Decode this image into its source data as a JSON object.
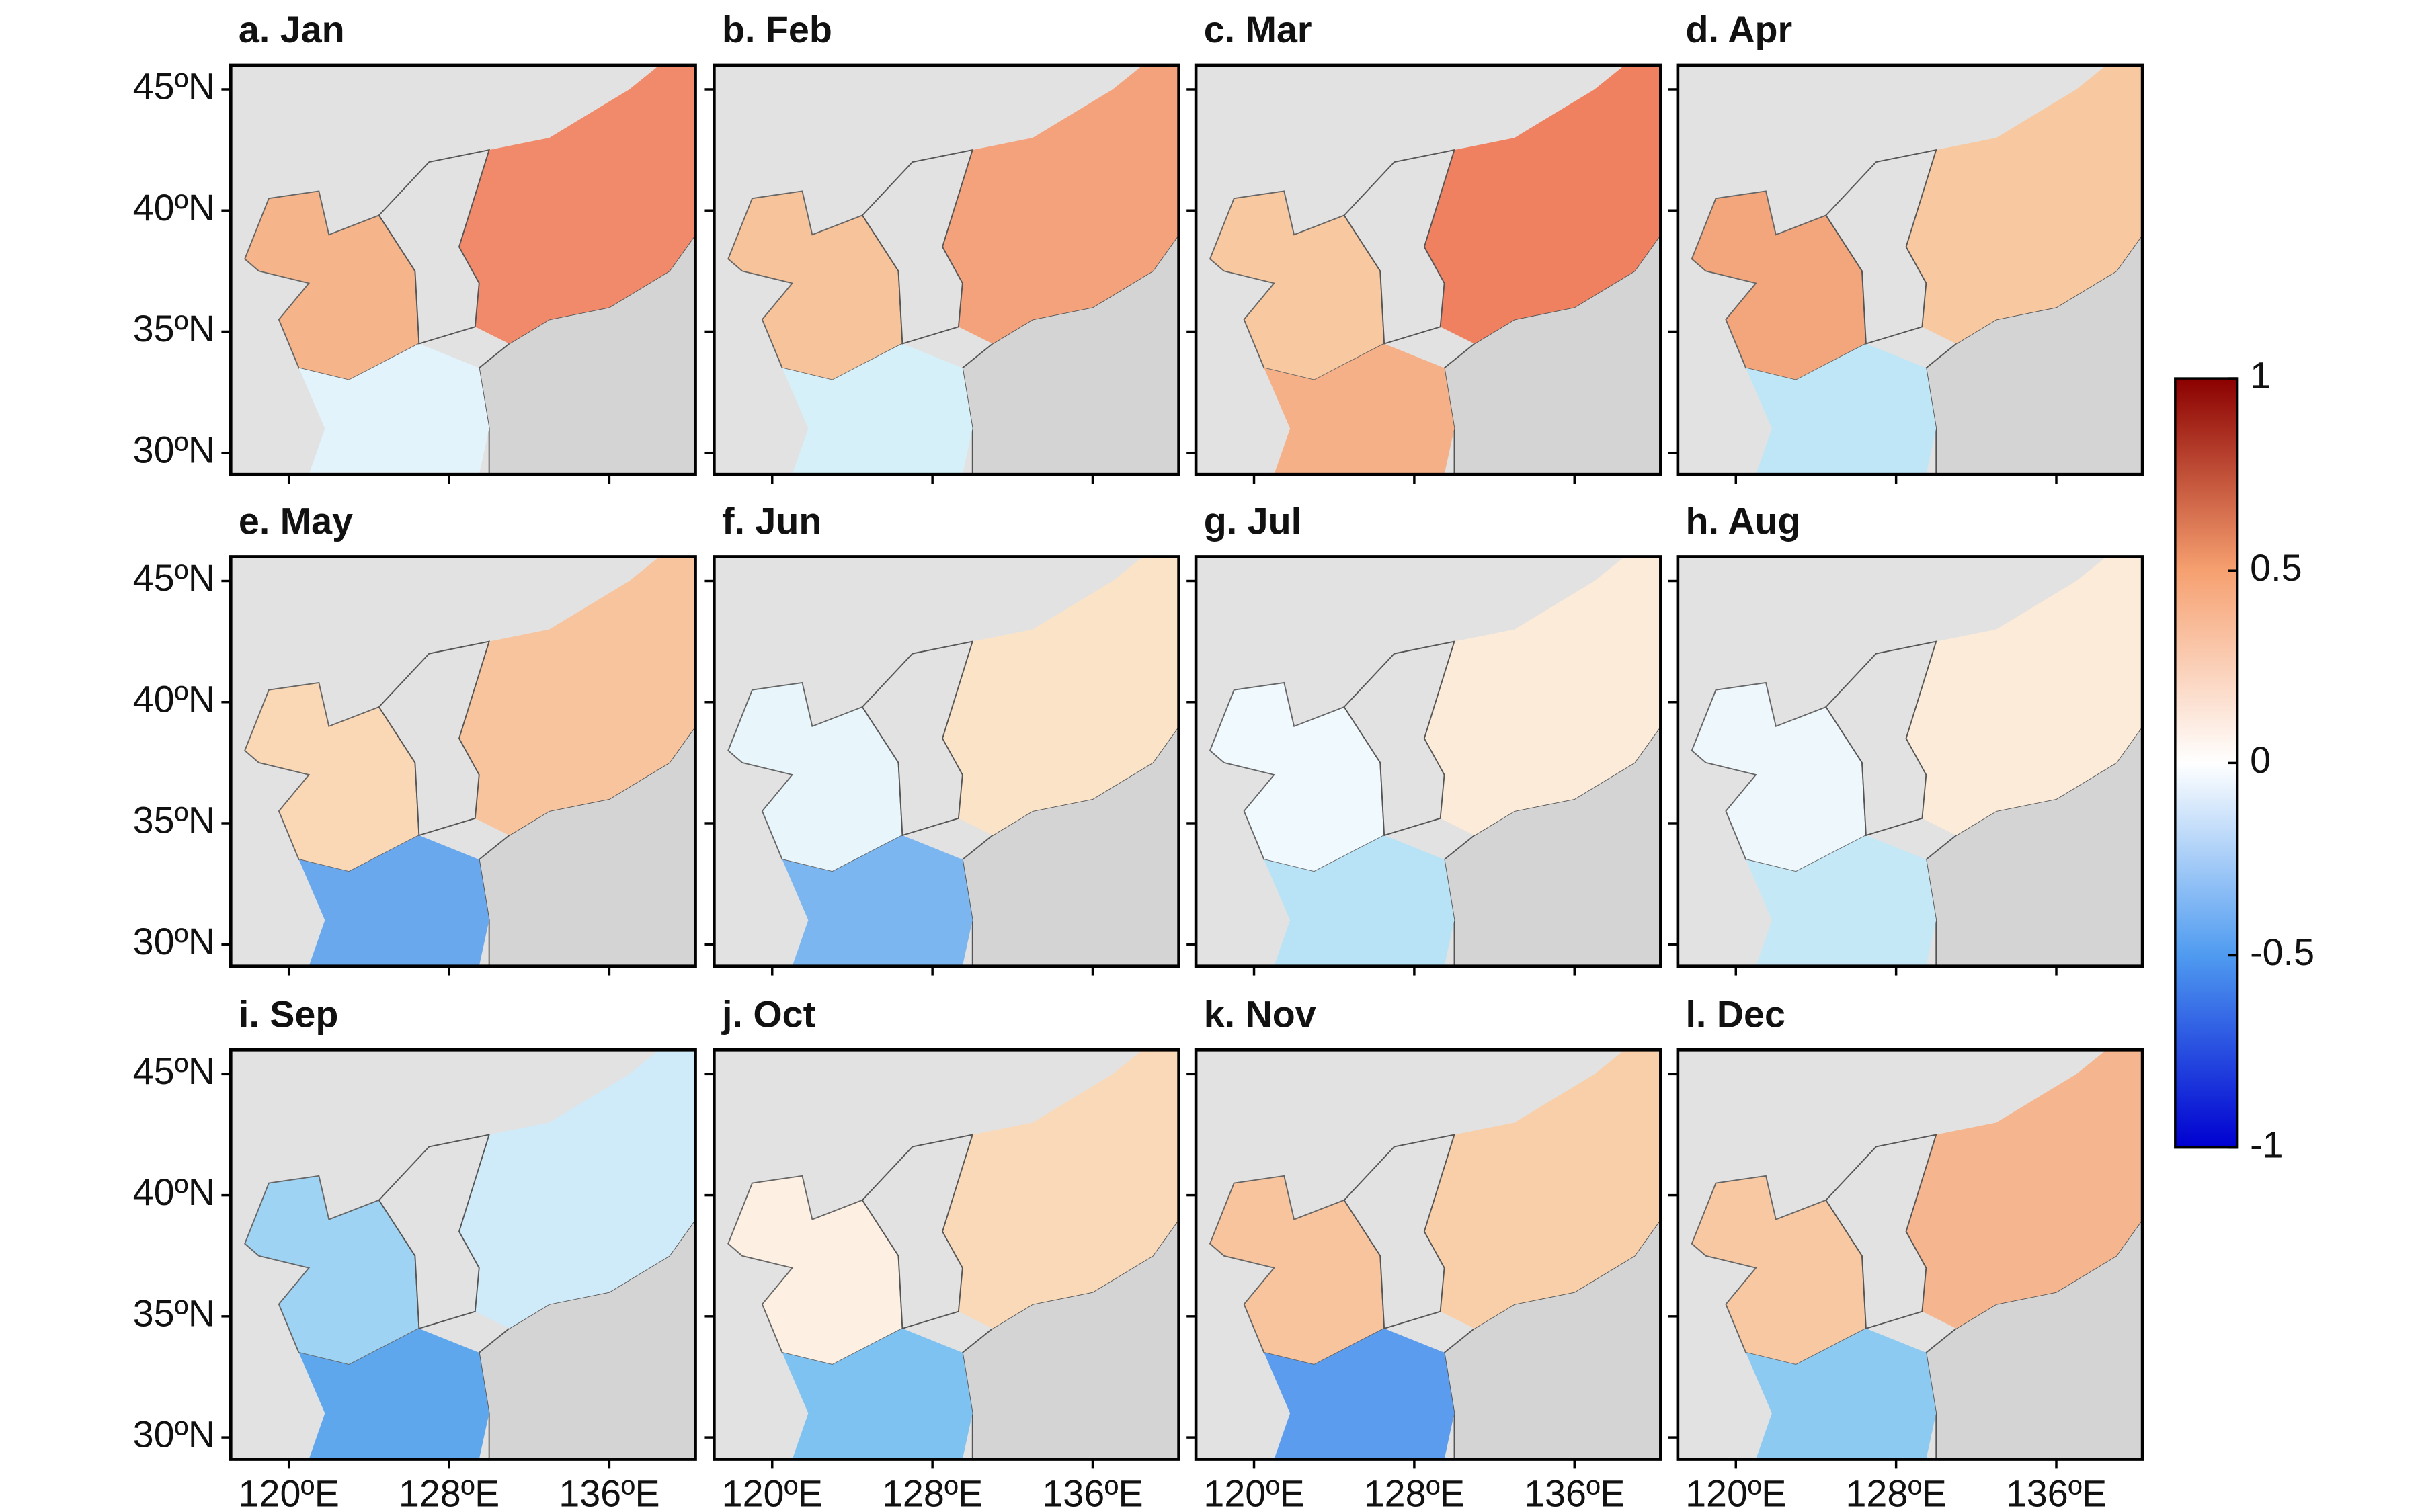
{
  "panels": [
    {
      "title": "a. Jan"
    },
    {
      "title": "b. Feb"
    },
    {
      "title": "c. Mar"
    },
    {
      "title": "d. Apr"
    },
    {
      "title": "e. May"
    },
    {
      "title": "f. Jun"
    },
    {
      "title": "g. Jul"
    },
    {
      "title": "h. Aug"
    },
    {
      "title": "i. Sep"
    },
    {
      "title": "j. Oct"
    },
    {
      "title": "k. Nov"
    },
    {
      "title": "l. Dec"
    }
  ],
  "map_axes": {
    "xlim": [
      117.1,
      140.3
    ],
    "ylim": [
      29.1,
      46
    ],
    "yticks": [
      {
        "value": 45,
        "label": "45ºN"
      },
      {
        "value": 40,
        "label": "40ºN"
      },
      {
        "value": 35,
        "label": "35ºN"
      },
      {
        "value": 30,
        "label": "30ºN"
      }
    ],
    "xticks": [
      {
        "value": 120,
        "label": "120ºE"
      },
      {
        "value": 128,
        "label": "128ºE"
      },
      {
        "value": 136,
        "label": "136ºE"
      }
    ]
  },
  "colorbar": {
    "ylim": [
      -1,
      1
    ],
    "yticks": [
      1,
      0.5,
      0,
      -0.5,
      -1
    ]
  }
}
